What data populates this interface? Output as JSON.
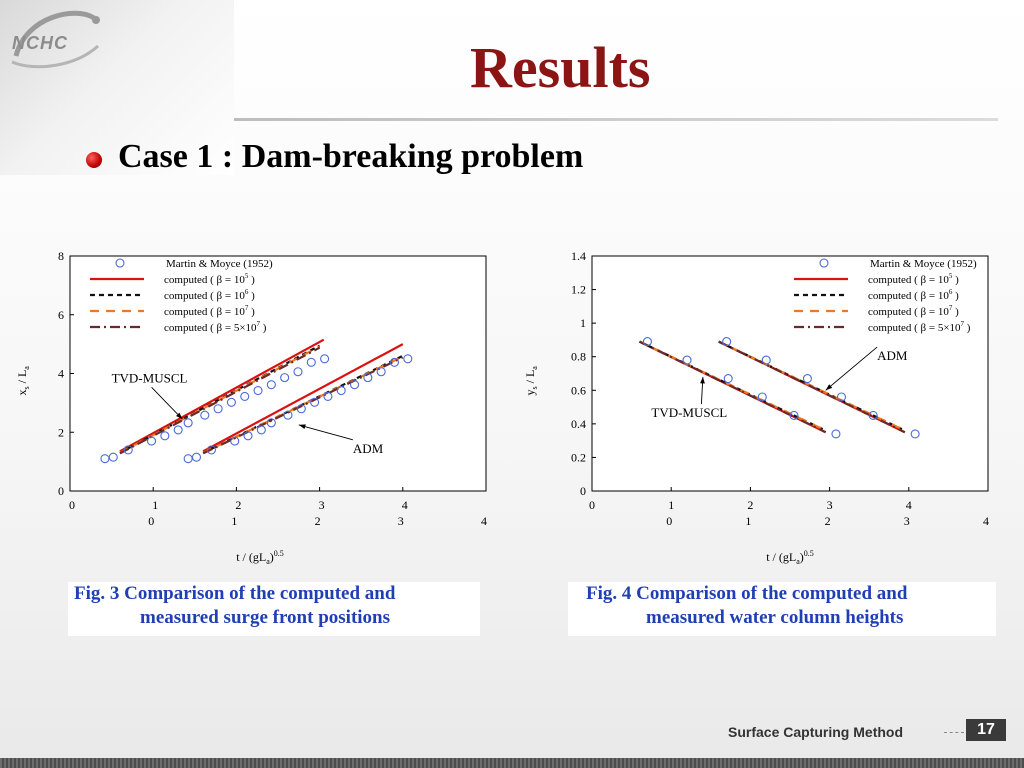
{
  "logo": {
    "text": "NCHC"
  },
  "title": "Results",
  "bullet": "Case 1 : Dam-breaking problem",
  "legend": [
    {
      "label": "Martin & Moyce (1952)",
      "sup": "",
      "tail": "",
      "style": "marker"
    },
    {
      "label": "computed ( β = 10",
      "sup": "5",
      "tail": ")",
      "style": "solid-red"
    },
    {
      "label": "computed ( β = 10",
      "sup": "6",
      "tail": ")",
      "style": "dash-black"
    },
    {
      "label": "computed ( β = 10",
      "sup": "7",
      "tail": ")",
      "style": "dash-orange"
    },
    {
      "label": "computed ( β = 5×10",
      "sup": "7",
      "tail": ")",
      "style": "dashdot-brown"
    }
  ],
  "colors": {
    "title": "#8b1414",
    "caption": "#1f3fb4",
    "marker": "#4a6bd8",
    "solid-red": "#dd1010",
    "dash-black": "#111111",
    "dash-orange": "#f07820",
    "dashdot-brown": "#6a2a2a"
  },
  "chart_data": [
    {
      "type": "line",
      "ylabel_main": "x",
      "ylabel_sub1": "s",
      "ylabel_mid": " / L",
      "ylabel_sub2": "a",
      "xlabel_main": "t / (gL",
      "xlabel_sub": "a",
      "xlabel_close": ")",
      "xlabel_sup": "0.5",
      "ylim": [
        0,
        8
      ],
      "yticks": [
        "0",
        "2",
        "4",
        "6",
        "8"
      ],
      "xticks_row1": [
        "0",
        "1",
        "2",
        "3",
        "4"
      ],
      "xticks_row2": [
        "0",
        "1",
        "2",
        "3",
        "4"
      ],
      "xlim": [
        0,
        5
      ],
      "annotations": [
        {
          "text": "TVD-MUSCL",
          "x": 0.5,
          "y": 3.7,
          "ax": 1.35,
          "ay": 2.45
        },
        {
          "text": "ADM",
          "x": 3.4,
          "y": 1.3,
          "ax": 2.75,
          "ay": 2.25
        }
      ],
      "groups": [
        {
          "name": "TVD-MUSCL",
          "points": [
            [
              0.42,
              1.1
            ],
            [
              0.52,
              1.15
            ],
            [
              0.7,
              1.4
            ],
            [
              0.98,
              1.7
            ],
            [
              1.14,
              1.88
            ],
            [
              1.3,
              2.08
            ],
            [
              1.42,
              2.32
            ],
            [
              1.62,
              2.58
            ],
            [
              1.78,
              2.8
            ],
            [
              1.94,
              3.02
            ],
            [
              2.1,
              3.22
            ],
            [
              2.26,
              3.42
            ],
            [
              2.42,
              3.62
            ],
            [
              2.58,
              3.86
            ],
            [
              2.74,
              4.06
            ],
            [
              2.9,
              4.38
            ],
            [
              3.06,
              4.5
            ]
          ],
          "series": [
            {
              "name": "computed ( β = 10^5 )",
              "style": "solid-red",
              "x": [
                0.6,
                3.05
              ],
              "y": [
                1.35,
                5.15
              ]
            },
            {
              "name": "computed ( β = 10^6 )",
              "style": "dash-black",
              "x": [
                0.6,
                3.0
              ],
              "y": [
                1.3,
                4.95
              ]
            },
            {
              "name": "computed ( β = 10^7 )",
              "style": "dash-orange",
              "x": [
                0.6,
                3.0
              ],
              "y": [
                1.3,
                4.92
              ]
            },
            {
              "name": "computed ( β = 5×10^7 )",
              "style": "dashdot-brown",
              "x": [
                0.6,
                3.0
              ],
              "y": [
                1.28,
                4.88
              ]
            }
          ]
        },
        {
          "name": "ADM",
          "points": [
            [
              1.42,
              1.1
            ],
            [
              1.52,
              1.15
            ],
            [
              1.7,
              1.4
            ],
            [
              1.98,
              1.7
            ],
            [
              2.14,
              1.88
            ],
            [
              2.3,
              2.08
            ],
            [
              2.42,
              2.32
            ],
            [
              2.62,
              2.58
            ],
            [
              2.78,
              2.8
            ],
            [
              2.94,
              3.02
            ],
            [
              3.1,
              3.22
            ],
            [
              3.26,
              3.42
            ],
            [
              3.42,
              3.62
            ],
            [
              3.58,
              3.86
            ],
            [
              3.74,
              4.06
            ],
            [
              3.9,
              4.38
            ],
            [
              4.06,
              4.5
            ]
          ],
          "series": [
            {
              "name": "computed ( β = 10^5 )",
              "style": "solid-red",
              "x": [
                1.6,
                4.0
              ],
              "y": [
                1.35,
                5.0
              ]
            },
            {
              "name": "computed ( β = 10^6 )",
              "style": "dash-black",
              "x": [
                1.6,
                4.0
              ],
              "y": [
                1.3,
                4.6
              ]
            },
            {
              "name": "computed ( β = 10^7 )",
              "style": "dash-orange",
              "x": [
                1.6,
                4.0
              ],
              "y": [
                1.3,
                4.58
              ]
            },
            {
              "name": "computed ( β = 5×10^7 )",
              "style": "dashdot-brown",
              "x": [
                1.6,
                4.0
              ],
              "y": [
                1.28,
                4.55
              ]
            }
          ]
        }
      ]
    },
    {
      "type": "line",
      "ylabel_main": "y",
      "ylabel_sub1": "s",
      "ylabel_mid": " / L",
      "ylabel_sub2": "a",
      "xlabel_main": "t / (gL",
      "xlabel_sub": "a",
      "xlabel_close": ")",
      "xlabel_sup": "0.5",
      "ylim": [
        0,
        1.4
      ],
      "yticks": [
        "0",
        "0.2",
        "0.4",
        "0.6",
        "0.8",
        "1",
        "1.2",
        "1.4"
      ],
      "xticks_row1": [
        "0",
        "1",
        "2",
        "3",
        "4"
      ],
      "xticks_row2": [
        "0",
        "1",
        "2",
        "3",
        "4"
      ],
      "xlim": [
        0,
        5
      ],
      "annotations": [
        {
          "text": "ADM",
          "x": 3.6,
          "y": 0.78,
          "ax": 2.95,
          "ay": 0.6
        },
        {
          "text": "TVD-MUSCL",
          "x": 0.75,
          "y": 0.44,
          "ax": 1.4,
          "ay": 0.68
        }
      ],
      "groups": [
        {
          "name": "TVD-MUSCL",
          "points": [
            [
              0.7,
              0.89
            ],
            [
              1.2,
              0.78
            ],
            [
              1.72,
              0.67
            ],
            [
              2.15,
              0.56
            ],
            [
              2.55,
              0.45
            ],
            [
              3.08,
              0.34
            ]
          ],
          "series": [
            {
              "name": "computed ( β = 10^5 )",
              "style": "solid-red",
              "x": [
                0.6,
                2.95
              ],
              "y": [
                0.89,
                0.35
              ]
            },
            {
              "name": "computed ( β = 10^6 )",
              "style": "dash-black",
              "x": [
                0.6,
                2.95
              ],
              "y": [
                0.89,
                0.36
              ]
            },
            {
              "name": "computed ( β = 10^7 )",
              "style": "dash-orange",
              "x": [
                0.6,
                2.95
              ],
              "y": [
                0.89,
                0.36
              ]
            },
            {
              "name": "computed ( β = 5×10^7 )",
              "style": "dashdot-brown",
              "x": [
                0.6,
                2.95
              ],
              "y": [
                0.89,
                0.35
              ]
            }
          ]
        },
        {
          "name": "ADM",
          "points": [
            [
              1.7,
              0.89
            ],
            [
              2.2,
              0.78
            ],
            [
              2.72,
              0.67
            ],
            [
              3.15,
              0.56
            ],
            [
              3.55,
              0.45
            ],
            [
              4.08,
              0.34
            ]
          ],
          "series": [
            {
              "name": "computed ( β = 10^5 )",
              "style": "solid-red",
              "x": [
                1.6,
                3.95
              ],
              "y": [
                0.89,
                0.35
              ]
            },
            {
              "name": "computed ( β = 10^6 )",
              "style": "dash-black",
              "x": [
                1.6,
                3.95
              ],
              "y": [
                0.89,
                0.36
              ]
            },
            {
              "name": "computed ( β = 10^7 )",
              "style": "dash-orange",
              "x": [
                1.6,
                3.95
              ],
              "y": [
                0.89,
                0.36
              ]
            },
            {
              "name": "computed ( β = 5×10^7 )",
              "style": "dashdot-brown",
              "x": [
                1.6,
                3.95
              ],
              "y": [
                0.89,
                0.35
              ]
            }
          ]
        }
      ]
    }
  ],
  "captions": [
    {
      "line1": "Fig. 3  Comparison of the computed and",
      "line2": "measured surge front positions"
    },
    {
      "line1": "Fig. 4  Comparison of the computed and",
      "line2": "measured water column heights"
    }
  ],
  "footer": {
    "label": "Surface Capturing Method",
    "page": "17"
  }
}
